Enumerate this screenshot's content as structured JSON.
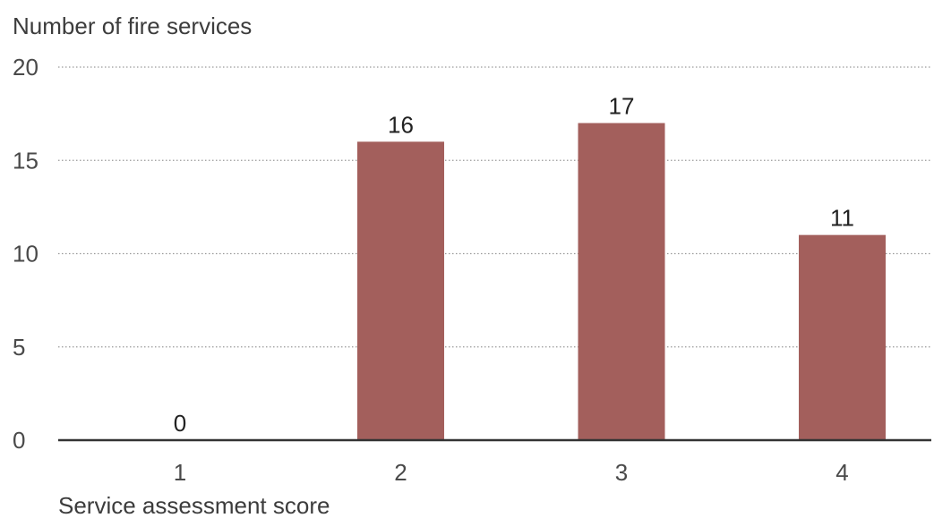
{
  "chart_data": {
    "type": "bar",
    "title": "",
    "ylabel": "Number of fire services",
    "xlabel": "Service assessment score",
    "categories": [
      "1",
      "2",
      "3",
      "4"
    ],
    "values": [
      0,
      16,
      17,
      11
    ],
    "data_labels": [
      "0",
      "16",
      "17",
      "11"
    ],
    "ylim": [
      0,
      20
    ],
    "yticks": [
      0,
      5,
      10,
      15,
      20
    ],
    "ytick_labels": [
      "0",
      "5",
      "10",
      "15",
      "20"
    ],
    "grid": true,
    "grid_style": "dotted",
    "legend": "none",
    "colors": {
      "bar": "#a35f5c",
      "axis": "#333333",
      "grid": "#9a9a9a"
    }
  }
}
